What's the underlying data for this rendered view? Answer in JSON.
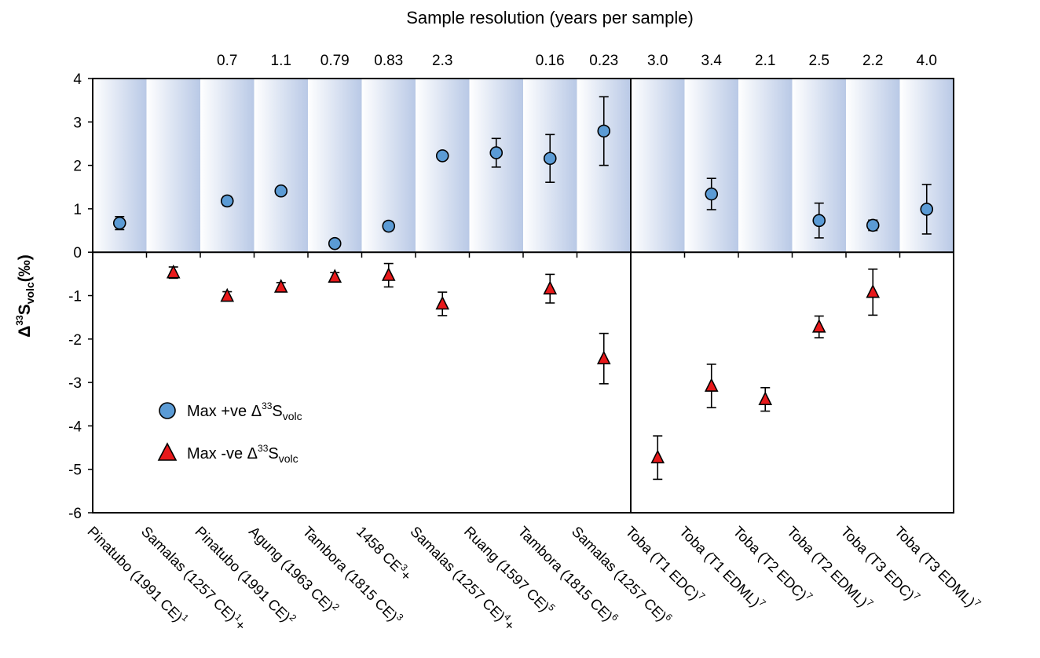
{
  "chart_data": {
    "type": "scatter",
    "title": "Sample resolution (years per sample)",
    "ylabel": {
      "prefix": "Δ",
      "sup": "33",
      "main": "S",
      "sub": "volc",
      "unit": "(‰)"
    },
    "ylim": [
      -6,
      4
    ],
    "yticks": [
      "4",
      "3",
      "2",
      "1",
      "0",
      "-1",
      "-2",
      "-3",
      "-4",
      "-5",
      "-6"
    ],
    "categories": [
      {
        "name": "Pinatubo (1991 CE)",
        "sup": "1"
      },
      {
        "name": "Samalas (1257 CE)",
        "sup": "1",
        "suffix": "+"
      },
      {
        "name": "Pinatubo (1991 CE)",
        "sup": "2"
      },
      {
        "name": "Agung (1963 CE)",
        "sup": "2"
      },
      {
        "name": "Tambora (1815 CE)",
        "sup": "3"
      },
      {
        "name": "1458 CE",
        "sup": "3",
        "suffix": "+"
      },
      {
        "name": "Samalas (1257 CE)",
        "sup": "4",
        "suffix": "+"
      },
      {
        "name": "Ruang (1597 CE)",
        "sup": "5"
      },
      {
        "name": "Tambora (1815 CE)",
        "sup": "6"
      },
      {
        "name": "Samalas (1257 CE)",
        "sup": "6"
      },
      {
        "name": "Toba (T1 EDC)",
        "sup": "7"
      },
      {
        "name": "Toba (T1 EDML)",
        "sup": "7"
      },
      {
        "name": "Toba (T2 EDC)",
        "sup": "7"
      },
      {
        "name": "Toba (T2 EDML)",
        "sup": "7"
      },
      {
        "name": "Toba (T3 EDC)",
        "sup": "7"
      },
      {
        "name": "Toba (T3 EDML)",
        "sup": "7"
      }
    ],
    "sample_resolution": [
      null,
      null,
      "0.7",
      "1.1",
      "0.79",
      "0.83",
      "2.3",
      null,
      "0.16",
      "0.23",
      "3.0",
      "3.4",
      "2.1",
      "2.5",
      "2.2",
      "4.0"
    ],
    "divider_after_index": 9,
    "series": [
      {
        "name": "Max +ve Δ33Svolc",
        "legend": {
          "text": "Max +ve Δ",
          "sup": "33",
          "main": "S",
          "sub": "volc"
        },
        "marker": "circle",
        "color": "#5b9bd5",
        "values": [
          0.67,
          null,
          1.18,
          1.41,
          0.2,
          0.6,
          2.22,
          2.29,
          2.16,
          2.79,
          null,
          1.34,
          null,
          0.73,
          0.62,
          0.99
        ],
        "err": [
          0.15,
          null,
          0.1,
          0.08,
          0.05,
          0.1,
          0.05,
          0.33,
          0.55,
          0.79,
          null,
          0.36,
          null,
          0.4,
          0.12,
          0.57
        ]
      },
      {
        "name": "Max -ve Δ33Svolc",
        "legend": {
          "text": "Max -ve Δ",
          "sup": "33",
          "main": "S",
          "sub": "volc"
        },
        "marker": "triangle",
        "color": "#e8191b",
        "values": [
          null,
          -0.47,
          -1.01,
          -0.8,
          -0.57,
          -0.53,
          -1.19,
          null,
          -0.84,
          -2.45,
          -4.73,
          -3.08,
          -3.39,
          -1.72,
          -0.92,
          null
        ],
        "err": [
          null,
          0.13,
          0.1,
          0.1,
          0.1,
          0.27,
          0.27,
          null,
          0.33,
          0.58,
          0.5,
          0.5,
          0.27,
          0.25,
          0.53,
          null
        ]
      }
    ],
    "grid": false,
    "legend_position": "lower-left",
    "background": "alternating blue-gradient column shading above zero"
  }
}
